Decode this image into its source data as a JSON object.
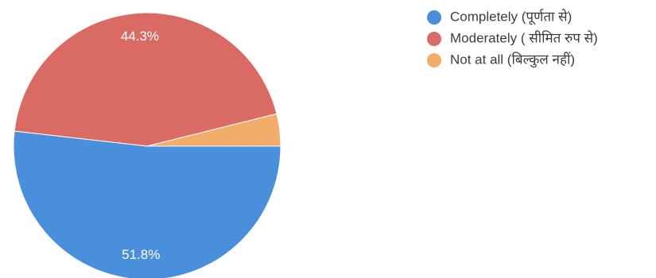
{
  "chart_data": {
    "type": "pie",
    "slices": [
      {
        "label": "Completely (पूर्णता से)",
        "value": 51.8,
        "display": "51.8%",
        "color": "#4a8fdb"
      },
      {
        "label": "Moderately ( सीमित रुप से)",
        "value": 44.3,
        "display": "44.3%",
        "color": "#d96a64"
      },
      {
        "label": "Not at all (बिल्कुल नहीं)",
        "value": 3.9,
        "display": "",
        "color": "#f2ad6a"
      }
    ],
    "legend_position": "top-right"
  }
}
